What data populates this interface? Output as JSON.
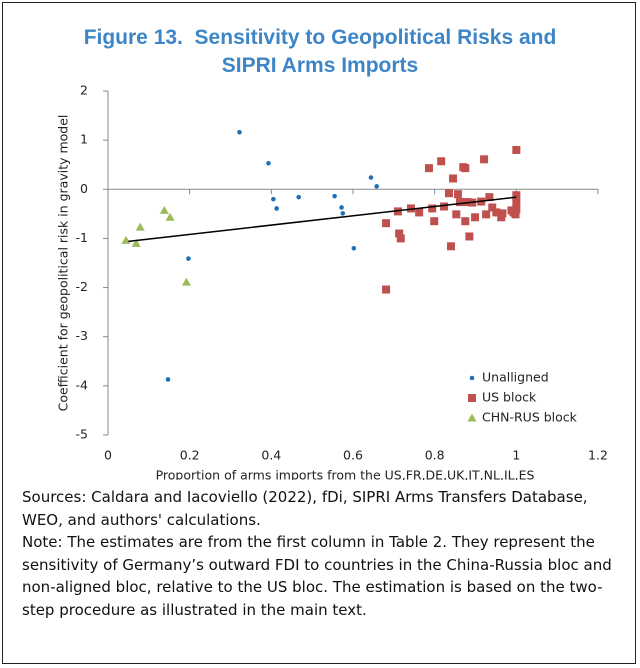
{
  "chart_data": {
    "type": "scatter",
    "title": "Figure 13.  Sensitivity to Geopolitical Risks and SIPRI Arms Imports",
    "x_label": "Proportion of arms imports from the US,FR,DE,UK,IT,NL,IL,ES",
    "y_label": "Coefficient for geopolitical risk in gravity model",
    "xlim": [
      0,
      1.2
    ],
    "ylim": [
      -5,
      2
    ],
    "xticks": [
      0,
      0.2,
      0.4,
      0.6,
      0.8,
      1,
      1.2
    ],
    "yticks": [
      -5,
      -4,
      -3,
      -2,
      -1,
      0,
      1,
      2
    ],
    "legend": "lower right",
    "series": [
      {
        "name": "Unalligned",
        "color": "#1f6fb5",
        "marker": "circle",
        "x": [
          0.322,
          0.393,
          0.405,
          0.413,
          0.467,
          0.555,
          0.572,
          0.575,
          0.602,
          0.644,
          0.658,
          0.197,
          0.147
        ],
        "values": [
          1.16,
          0.53,
          -0.2,
          -0.39,
          -0.16,
          -0.14,
          -0.37,
          -0.49,
          -1.2,
          0.24,
          0.06,
          -1.41,
          -3.87
        ]
      },
      {
        "name": "US block",
        "color": "#c0504d",
        "marker": "square",
        "x": [
          0.681,
          0.681,
          0.71,
          0.713,
          0.717,
          0.742,
          0.762,
          0.786,
          0.794,
          0.799,
          0.816,
          0.823,
          0.835,
          0.84,
          0.845,
          0.853,
          0.857,
          0.862,
          0.87,
          0.875,
          0.875,
          0.88,
          0.885,
          0.892,
          0.899,
          0.914,
          0.921,
          0.926,
          0.934,
          0.941,
          0.951,
          0.963,
          0.966,
          0.988,
          0.993,
          0.998,
          1.0,
          1.0,
          1.0,
          1.0
        ],
        "values": [
          -2.04,
          -0.69,
          -0.45,
          -0.9,
          -1.0,
          -0.39,
          -0.47,
          0.43,
          -0.39,
          -0.65,
          0.57,
          -0.35,
          -0.08,
          -1.16,
          0.22,
          -0.51,
          -0.1,
          -0.26,
          0.45,
          0.43,
          -0.65,
          -0.26,
          -0.96,
          -0.27,
          -0.57,
          -0.25,
          0.61,
          -0.51,
          -0.16,
          -0.37,
          -0.47,
          -0.57,
          -0.49,
          -0.43,
          -0.47,
          -0.51,
          -0.12,
          -0.26,
          0.8,
          -0.41
        ]
      },
      {
        "name": "CHN-RUS block",
        "color": "#9bbb59",
        "marker": "triangle",
        "x": [
          0.044,
          0.069,
          0.079,
          0.138,
          0.152,
          0.192
        ],
        "values": [
          -1.04,
          -1.1,
          -0.77,
          -0.43,
          -0.57,
          -1.89
        ]
      }
    ],
    "trend_line": {
      "color": "#000000",
      "x": [
        0.05,
        1.0
      ],
      "values": [
        -1.06,
        -0.16
      ]
    }
  },
  "notes": {
    "sources": "Sources: Caldara and Iacoviello (2022), fDi, SIPRI Arms Transfers Database, WEO, and authors' calculations.",
    "note": "Note: The estimates are from the first column in Table 2. They represent the sensitivity of Germany’s outward FDI to countries in the China-Russia bloc and non-aligned bloc, relative to the US bloc. The estimation is based on the two-step procedure as illustrated in the main text."
  }
}
